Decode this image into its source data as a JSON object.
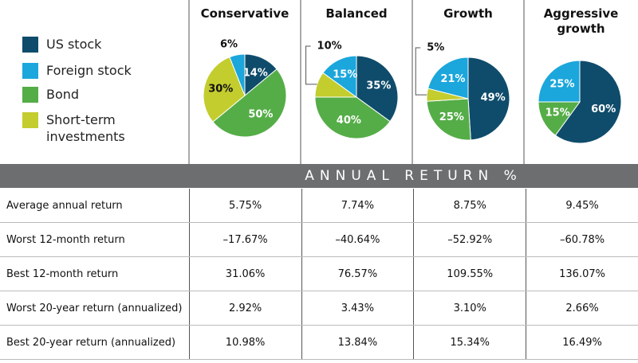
{
  "legend": {
    "labels": [
      "US stock",
      "Foreign stock",
      "Bond",
      "Short-term investments"
    ],
    "colors": [
      "#0f4c6b",
      "#1ba6dc",
      "#55ad47",
      "#c3cd2e"
    ]
  },
  "chart_data": [
    {
      "type": "pie",
      "title": "Conservative",
      "values": [
        14,
        6,
        50,
        30
      ],
      "value_labels": [
        "14%",
        "6%",
        "50%",
        "30%"
      ]
    },
    {
      "type": "pie",
      "title": "Balanced",
      "values": [
        35,
        15,
        40,
        10
      ],
      "value_labels": [
        "35%",
        "15%",
        "40%",
        "10%"
      ]
    },
    {
      "type": "pie",
      "title": "Growth",
      "values": [
        49,
        21,
        25,
        5
      ],
      "value_labels": [
        "49%",
        "21%",
        "25%",
        "5%"
      ]
    },
    {
      "type": "pie",
      "title": "Aggressive growth",
      "values": [
        60,
        25,
        15
      ],
      "value_labels": [
        "60%",
        "25%",
        "15%"
      ]
    }
  ],
  "table": {
    "title": "ANNUAL RETURN %",
    "rows": [
      [
        "Average annual return",
        "5.75%",
        "7.74%",
        "8.75%",
        "9.45%"
      ],
      [
        "Worst 12-month return",
        "–17.67%",
        "–40.64%",
        "–52.92%",
        "–60.78%"
      ],
      [
        "Best 12-month return",
        "31.06%",
        "76.57%",
        "109.55%",
        "136.07%"
      ],
      [
        "Worst 20-year return (annualized)",
        "2.92%",
        "3.43%",
        "3.10%",
        "2.66%"
      ],
      [
        "Best 20-year return (annualized)",
        "10.98%",
        "13.84%",
        "15.34%",
        "16.49%"
      ]
    ]
  }
}
